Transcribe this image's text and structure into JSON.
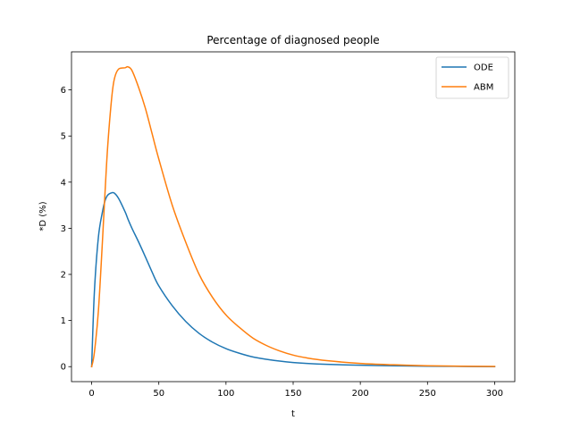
{
  "chart_data": {
    "type": "line",
    "title": "Percentage of diagnosed people",
    "xlabel": "t",
    "ylabel": "*D (%)",
    "xlim": [
      -15,
      315
    ],
    "ylim": [
      -0.325,
      6.825
    ],
    "xticks": [
      0,
      50,
      100,
      150,
      200,
      250,
      300
    ],
    "yticks": [
      0,
      1,
      2,
      3,
      4,
      5,
      6
    ],
    "grid": false,
    "legend_position": "top-right",
    "x": [
      0,
      2,
      5,
      8,
      10,
      12,
      15,
      17,
      20,
      25,
      27,
      30,
      35,
      40,
      45,
      50,
      60,
      70,
      80,
      90,
      100,
      110,
      120,
      130,
      140,
      150,
      160,
      175,
      200,
      225,
      250,
      275,
      300
    ],
    "series": [
      {
        "name": "ODE",
        "color": "#1f77b4",
        "values": [
          0.0,
          1.6,
          2.8,
          3.35,
          3.6,
          3.72,
          3.77,
          3.76,
          3.65,
          3.35,
          3.2,
          3.0,
          2.7,
          2.38,
          2.05,
          1.75,
          1.32,
          0.98,
          0.72,
          0.53,
          0.39,
          0.29,
          0.21,
          0.16,
          0.12,
          0.09,
          0.07,
          0.05,
          0.03,
          0.02,
          0.01,
          0.005,
          0.0
        ]
      },
      {
        "name": "ABM",
        "color": "#ff7f0e",
        "values": [
          0.0,
          0.3,
          1.2,
          2.7,
          3.8,
          4.8,
          5.85,
          6.25,
          6.45,
          6.48,
          6.5,
          6.42,
          6.05,
          5.6,
          5.05,
          4.5,
          3.5,
          2.7,
          2.0,
          1.5,
          1.12,
          0.85,
          0.62,
          0.46,
          0.34,
          0.25,
          0.19,
          0.13,
          0.07,
          0.04,
          0.02,
          0.01,
          0.005
        ]
      }
    ]
  }
}
